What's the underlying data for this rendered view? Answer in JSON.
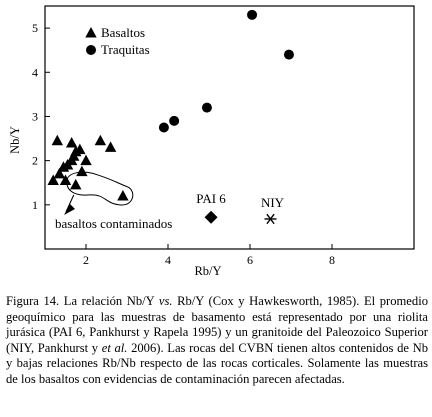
{
  "chart_data": {
    "type": "scatter",
    "xlabel": "Rb/Y",
    "ylabel": "Nb/Y",
    "xlim": [
      1.0,
      10.0
    ],
    "ylim": [
      0.0,
      5.5
    ],
    "x_ticks": [
      2,
      4,
      6,
      8
    ],
    "y_ticks": [
      1,
      2,
      3,
      4,
      5
    ],
    "grid": false,
    "legend_position": "top-left",
    "series": [
      {
        "name": "Basaltos",
        "marker": "triangle",
        "points": [
          [
            1.2,
            1.55
          ],
          [
            1.35,
            1.7
          ],
          [
            1.45,
            1.85
          ],
          [
            1.55,
            1.9
          ],
          [
            1.65,
            2.0
          ],
          [
            1.7,
            2.1
          ],
          [
            1.75,
            2.2
          ],
          [
            1.85,
            2.25
          ],
          [
            1.3,
            2.45
          ],
          [
            1.65,
            2.4
          ],
          [
            1.9,
            1.75
          ],
          [
            2.0,
            2.0
          ],
          [
            2.35,
            2.45
          ],
          [
            2.6,
            2.3
          ],
          [
            1.5,
            1.55
          ],
          [
            1.75,
            1.45
          ],
          [
            2.9,
            1.2
          ]
        ]
      },
      {
        "name": "Traquitas",
        "marker": "circle",
        "points": [
          [
            3.9,
            2.75
          ],
          [
            4.15,
            2.9
          ],
          [
            4.95,
            3.2
          ],
          [
            6.05,
            5.3
          ],
          [
            6.95,
            4.4
          ]
        ]
      },
      {
        "name": "PAI 6",
        "marker": "diamond",
        "points": [
          [
            5.05,
            0.72
          ]
        ]
      },
      {
        "name": "NIY",
        "marker": "asterisk",
        "points": [
          [
            6.5,
            0.68
          ]
        ]
      }
    ],
    "annotations": [
      {
        "text": "PAI 6",
        "near": "PAI 6"
      },
      {
        "text": "NIY",
        "near": "NIY"
      },
      {
        "text": "basaltos contaminados",
        "near": "Basaltos"
      }
    ]
  },
  "text": {
    "legend_basaltos": "Basaltos",
    "legend_traquitas": "Traquitas",
    "xlabel": "Rb/Y",
    "ylabel": "Nb/Y",
    "label_pai6": "PAI 6",
    "label_niy": "NIY",
    "label_contaminated": "basaltos contaminados"
  },
  "caption": {
    "part1": "Figura 14. La relación Nb/Y ",
    "vs": "vs.",
    "part2": " Rb/Y (Cox y Hawkesworth, 1985). El promedio geoquímico para las muestras de basamento está representado por una riolita jurásica (PAI 6, Pankhurst y Rapela 1995) y un granitoide del Paleozoico Superior (NIY, Pankhurst y ",
    "etal": "et al.",
    "part3": " 2006). Las rocas del CVBN tienen altos contenidos de Nb y bajas relaciones Rb/Nb respecto de las rocas corticales. Solamente las muestras de los basaltos con evidencias de contaminación parecen afectadas."
  }
}
